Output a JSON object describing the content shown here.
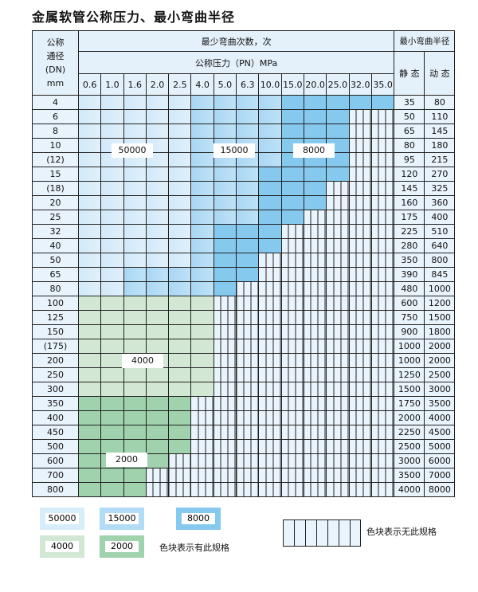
{
  "title": "金属软管公称压力、最小弯曲半径",
  "header": {
    "dn_label": [
      "公称",
      "通径",
      "(DN)",
      "mm"
    ],
    "cycles_label": "最少弯曲次数，次",
    "pressure_label": "公称压力（PN）MPa",
    "radius_label": "最小弯曲半径",
    "static_label": "静 态",
    "dynamic_label": "动 态",
    "pressures": [
      "0.6",
      "1.0",
      "1.6",
      "2.0",
      "2.5",
      "4.0",
      "5.0",
      "6.3",
      "10.0",
      "15.0",
      "20.0",
      "25.0",
      "32.0",
      "35.0"
    ]
  },
  "colors": {
    "50000": "#d8edfa",
    "15000": "#b2dbf5",
    "8000": "#86c9ef",
    "4000": "#d2e8d4",
    "2000": "#9fd2ad",
    "none": "#eaf4fc"
  },
  "rows": [
    {
      "dn": "4",
      "static": "35",
      "dynamic": "80",
      "cells": "LLLLLMMMMDDDDD"
    },
    {
      "dn": "6",
      "static": "50",
      "dynamic": "110",
      "cells": "LLLLLMMMMDDD"
    },
    {
      "dn": "8",
      "static": "65",
      "dynamic": "145",
      "cells": "LLLLLMMMMDDD"
    },
    {
      "dn": "10",
      "static": "80",
      "dynamic": "180",
      "cells": "LLLLLMMMMDDD"
    },
    {
      "dn": "(12)",
      "static": "95",
      "dynamic": "215",
      "cells": "LLLLLMMMMDDD"
    },
    {
      "dn": "15",
      "static": "120",
      "dynamic": "270",
      "cells": "LLLLLMMMDDDD"
    },
    {
      "dn": "(18)",
      "static": "145",
      "dynamic": "325",
      "cells": "LLLLLMMMDDD"
    },
    {
      "dn": "20",
      "static": "160",
      "dynamic": "360",
      "cells": "LLLLLMMMDDD"
    },
    {
      "dn": "25",
      "static": "175",
      "dynamic": "400",
      "cells": "LLLLLMMMDD"
    },
    {
      "dn": "32",
      "static": "225",
      "dynamic": "510",
      "cells": "LLLLLMDDD"
    },
    {
      "dn": "40",
      "static": "280",
      "dynamic": "640",
      "cells": "LLLLLMDDD"
    },
    {
      "dn": "50",
      "static": "350",
      "dynamic": "800",
      "cells": "LLLLLMDD"
    },
    {
      "dn": "65",
      "static": "390",
      "dynamic": "845",
      "cells": "LLMMMMDD"
    },
    {
      "dn": "80",
      "static": "480",
      "dynamic": "1000",
      "cells": "LLMMMMD"
    },
    {
      "dn": "100",
      "static": "600",
      "dynamic": "1200",
      "cells": "GGGGGG"
    },
    {
      "dn": "125",
      "static": "750",
      "dynamic": "1500",
      "cells": "GGGGGG"
    },
    {
      "dn": "150",
      "static": "900",
      "dynamic": "1800",
      "cells": "GGGGGG"
    },
    {
      "dn": "(175)",
      "static": "1000",
      "dynamic": "2000",
      "cells": "GGGGGG"
    },
    {
      "dn": "200",
      "static": "1000",
      "dynamic": "2000",
      "cells": "GGGGGG"
    },
    {
      "dn": "250",
      "static": "1250",
      "dynamic": "2500",
      "cells": "GGGGGG"
    },
    {
      "dn": "300",
      "static": "1500",
      "dynamic": "3000",
      "cells": "GGGGGG"
    },
    {
      "dn": "350",
      "static": "1750",
      "dynamic": "3500",
      "cells": "HHHHH"
    },
    {
      "dn": "400",
      "static": "2000",
      "dynamic": "4000",
      "cells": "HHHHH"
    },
    {
      "dn": "450",
      "static": "2250",
      "dynamic": "4500",
      "cells": "HHHHH"
    },
    {
      "dn": "500",
      "static": "2500",
      "dynamic": "5000",
      "cells": "HHHHH"
    },
    {
      "dn": "600",
      "static": "3000",
      "dynamic": "6000",
      "cells": "HHHH"
    },
    {
      "dn": "700",
      "static": "3500",
      "dynamic": "7000",
      "cells": "HHH"
    },
    {
      "dn": "800",
      "static": "4000",
      "dynamic": "8000",
      "cells": "HHH"
    }
  ],
  "region_labels": {
    "l50000": "50000",
    "l15000": "15000",
    "l8000": "8000",
    "l4000": "4000",
    "l2000": "2000"
  },
  "legend": {
    "items": [
      "50000",
      "15000",
      "8000",
      "4000",
      "2000"
    ],
    "available_text": "色块表示有此规格",
    "unavailable_text": "色块表示无此规格"
  }
}
